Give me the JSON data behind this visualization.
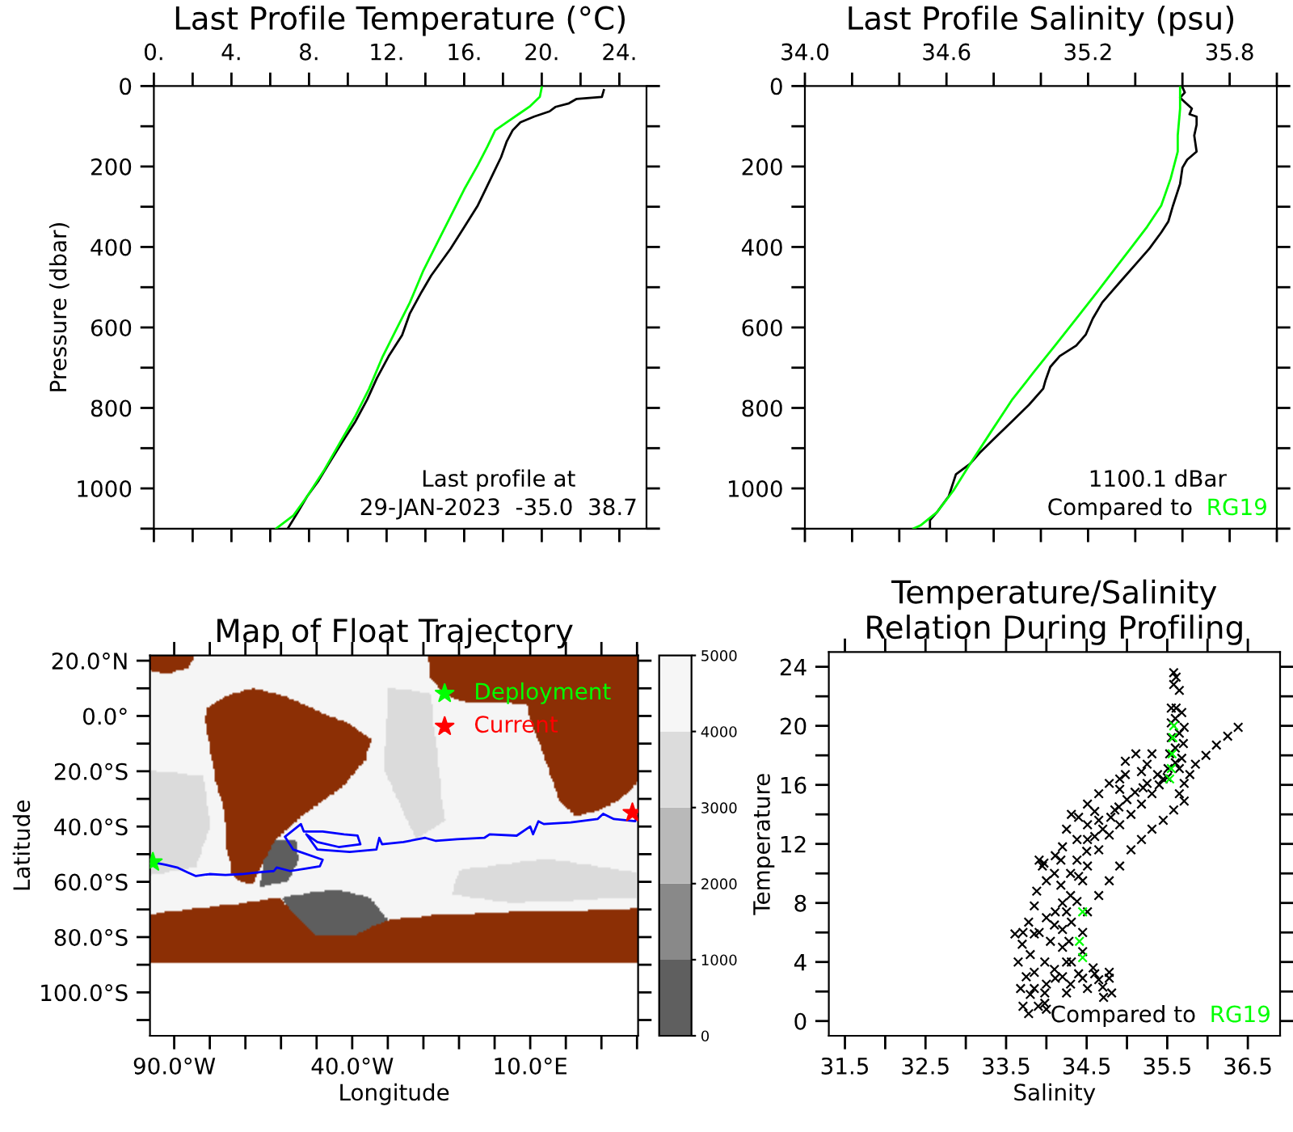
{
  "chart_data": [
    {
      "type": "line",
      "title": "Last Profile Temperature (°C)",
      "ylabel": "Pressure (dbar)",
      "xlim": [
        0,
        25.4
      ],
      "xticks": [
        {
          "value": 0,
          "label": "0."
        },
        {
          "value": 2,
          "label": null
        },
        {
          "value": 4,
          "label": "4."
        },
        {
          "value": 6,
          "label": null
        },
        {
          "value": 8,
          "label": "8."
        },
        {
          "value": 10,
          "label": null
        },
        {
          "value": 12,
          "label": "12."
        },
        {
          "value": 14,
          "label": null
        },
        {
          "value": 16,
          "label": "16."
        },
        {
          "value": 18,
          "label": null
        },
        {
          "value": 20,
          "label": "20."
        },
        {
          "value": 22,
          "label": null
        },
        {
          "value": 24,
          "label": "24."
        }
      ],
      "ylim": [
        1100,
        0
      ],
      "yticks": [
        0,
        {
          "value": 100,
          "label": null
        },
        200,
        {
          "value": 300,
          "label": null
        },
        400,
        {
          "value": 500,
          "label": null
        },
        600,
        {
          "value": 700,
          "label": null
        },
        800,
        {
          "value": 900,
          "label": null
        },
        1000,
        {
          "value": 1100,
          "label": null
        }
      ],
      "series": [
        {
          "color": "#000000",
          "x": [
            23.2,
            23.1,
            21.8,
            21.4,
            20.7,
            20.4,
            19.6,
            18.9,
            18.5,
            18.2,
            17.9,
            17.5,
            17.1,
            16.7,
            16.0,
            15.3,
            14.3,
            13.8,
            13.2,
            12.8,
            12.1,
            11.5,
            11.0,
            10.4,
            9.7,
            9.0,
            8.5,
            7.9,
            7.4,
            6.9
          ],
          "values": [
            10,
            27,
            32,
            43,
            52,
            63,
            76,
            90,
            110,
            137,
            177,
            217,
            257,
            297,
            351,
            404,
            471,
            512,
            565,
            619,
            672,
            726,
            779,
            833,
            886,
            940,
            980,
            1020,
            1061,
            1100
          ]
        },
        {
          "color": "#00ff00",
          "x": [
            20.0,
            19.9,
            19.4,
            18.8,
            18.2,
            17.6,
            17.2,
            16.7,
            16.0,
            15.3,
            14.6,
            13.9,
            13.2,
            12.5,
            11.8,
            11.1,
            10.4,
            9.6,
            8.8,
            7.9,
            7.2,
            6.3
          ],
          "values": [
            3,
            27,
            50,
            70,
            90,
            110,
            150,
            197,
            257,
            324,
            391,
            458,
            538,
            605,
            672,
            752,
            819,
            886,
            953,
            1020,
            1067,
            1100
          ]
        }
      ],
      "annotations": [
        "Last profile at",
        "29-JAN-2023  -35.0  38.7"
      ]
    },
    {
      "type": "line",
      "title": "Last Profile Salinity (psu)",
      "xlim": [
        34.0,
        36.0
      ],
      "xticks": [
        {
          "value": 34.0,
          "label": "34.0"
        },
        {
          "value": 34.2,
          "label": null
        },
        {
          "value": 34.4,
          "label": null
        },
        34.6,
        {
          "value": 34.8,
          "label": null
        },
        {
          "value": 35.0,
          "label": null
        },
        35.2,
        {
          "value": 35.4,
          "label": null
        },
        {
          "value": 35.6,
          "label": null
        },
        35.8,
        {
          "value": 36.0,
          "label": null
        }
      ],
      "ylim": [
        1100,
        0
      ],
      "yticks": [
        0,
        {
          "value": 100,
          "label": null
        },
        200,
        {
          "value": 300,
          "label": null
        },
        400,
        {
          "value": 500,
          "label": null
        },
        600,
        {
          "value": 700,
          "label": null
        },
        800,
        {
          "value": 900,
          "label": null
        },
        1000,
        {
          "value": 1100,
          "label": null
        }
      ],
      "series": [
        {
          "color": "#000000",
          "x": [
            35.6,
            35.61,
            35.59,
            35.61,
            35.64,
            35.63,
            35.66,
            35.66,
            35.65,
            35.66,
            35.62,
            35.6,
            35.59,
            35.56,
            35.54,
            35.51,
            35.46,
            35.4,
            35.34,
            35.3,
            35.26,
            35.22,
            35.19,
            35.15,
            35.08,
            35.04,
            35.02,
            35.01,
            34.95,
            34.88,
            34.81,
            34.74,
            34.7,
            34.64,
            34.61,
            34.56,
            34.53,
            34.53
          ],
          "values": [
            3,
            16,
            29,
            40,
            56,
            70,
            76,
            96,
            123,
            163,
            183,
            203,
            243,
            297,
            337,
            364,
            404,
            444,
            484,
            511,
            538,
            578,
            618,
            645,
            671,
            698,
            731,
            752,
            792,
            832,
            872,
            912,
            939,
            965,
            1019,
            1059,
            1079,
            1100
          ]
        },
        {
          "name": "RG19",
          "color": "#00ff00",
          "x": [
            35.59,
            35.59,
            35.58,
            35.58,
            35.55,
            35.51,
            35.45,
            35.38,
            35.31,
            35.24,
            35.15,
            35.06,
            34.97,
            34.88,
            34.79,
            34.7,
            34.63,
            34.56,
            34.49,
            34.46
          ],
          "values": [
            3,
            56,
            123,
            163,
            230,
            297,
            350,
            404,
            457,
            511,
            578,
            645,
            711,
            778,
            858,
            939,
            1005,
            1059,
            1092,
            1100
          ]
        }
      ],
      "annotations": [
        "1100.1 dBar",
        "Compared to"
      ]
    },
    {
      "type": "line",
      "title": "Map of Float Trajectory",
      "xlabel": "Longitude",
      "ylabel": "Latitude",
      "xlim": [
        -96.8,
        40.3
      ],
      "xticks": [
        {
          "value": -90,
          "label": "90.0°W"
        },
        {
          "value": -80,
          "label": null
        },
        {
          "value": -70,
          "label": null
        },
        {
          "value": -60,
          "label": null
        },
        {
          "value": -50,
          "label": null
        },
        {
          "value": -40,
          "label": "40.0°W"
        },
        {
          "value": -30,
          "label": null
        },
        {
          "value": -20,
          "label": null
        },
        {
          "value": -10,
          "label": null
        },
        {
          "value": 0,
          "label": null
        },
        {
          "value": 10,
          "label": "10.0°E"
        },
        {
          "value": 20,
          "label": null
        },
        {
          "value": 30,
          "label": null
        },
        {
          "value": 40,
          "label": null
        }
      ],
      "ylim": [
        -115.7,
        21.9
      ],
      "yticks": [
        {
          "value": 20,
          "label": "20.0°N"
        },
        {
          "value": 10,
          "label": null
        },
        {
          "value": 0,
          "label": "0.0°"
        },
        {
          "value": -10,
          "label": null
        },
        {
          "value": -20,
          "label": "20.0°S"
        },
        {
          "value": -30,
          "label": null
        },
        {
          "value": -40,
          "label": "40.0°S"
        },
        {
          "value": -50,
          "label": null
        },
        {
          "value": -60,
          "label": "60.0°S"
        },
        {
          "value": -70,
          "label": null
        },
        {
          "value": -80,
          "label": "80.0°S"
        },
        {
          "value": -90,
          "label": null
        },
        {
          "value": -100,
          "label": "100.0°S"
        },
        {
          "value": -110,
          "label": null
        }
      ],
      "clim": [
        0,
        5000
      ],
      "cticks": [
        0,
        1000,
        2000,
        3000,
        4000,
        5000
      ],
      "series": [
        {
          "color": "#0000ff",
          "x": [
            -96.0,
            -92.3,
            -89.2,
            -86.2,
            -83.9,
            -80.1,
            -75.6,
            -71.0,
            -66.5,
            -62.0,
            -61.2,
            -57.4,
            -52.9,
            -49.1,
            -48.3,
            -56.6,
            -58.9,
            -54.4,
            -53.6,
            -48.3,
            -42.3,
            -38.5,
            -37.7,
            -43.8,
            -49.8,
            -52.9,
            -49.8,
            -40.7,
            -33.2,
            -32.4,
            -31.6,
            -25.6,
            -19.5,
            -16.5,
            -10.5,
            -2.9,
            -1.4,
            6.2,
            10.0,
            10.8,
            12.3,
            13.8,
            21.4,
            28.9,
            30.5,
            33.5,
            39.5,
            39.9,
            38.7
          ],
          "values": [
            -52.9,
            -53.9,
            -54.8,
            -56.6,
            -57.9,
            -57.2,
            -57.5,
            -57.2,
            -56.6,
            -56.1,
            -54.8,
            -56.1,
            -55.2,
            -54.4,
            -52.0,
            -48.3,
            -43.7,
            -39.1,
            -41.8,
            -41.8,
            -42.8,
            -43.3,
            -46.4,
            -47.4,
            -45.6,
            -42.8,
            -48.3,
            -49.2,
            -48.3,
            -44.1,
            -46.4,
            -45.6,
            -44.1,
            -45.2,
            -44.6,
            -44.1,
            -42.8,
            -43.3,
            -40.0,
            -42.8,
            -38.1,
            -39.1,
            -38.5,
            -37.3,
            -35.4,
            -37.3,
            -38.1,
            -36.3,
            -35.0
          ]
        },
        {
          "name": "Deployment",
          "type": "scatter",
          "marker": "star",
          "color": "#00ff00",
          "x": [
            -96.0
          ],
          "values": [
            -52.9
          ]
        },
        {
          "name": "Current",
          "type": "scatter",
          "marker": "star",
          "color": "#ff0000",
          "x": [
            38.7
          ],
          "values": [
            -35.0
          ]
        }
      ],
      "legend": "top right"
    },
    {
      "type": "scatter",
      "title": "Temperature/Salinity\nRelation During Profiling",
      "xlabel": "Salinity",
      "ylabel": "Temperature",
      "marker": "cross",
      "xlim": [
        31.3,
        36.9
      ],
      "xticks": [
        31.5,
        {
          "value": 32.0,
          "label": null
        },
        32.5,
        {
          "value": 33.0,
          "label": null
        },
        33.5,
        {
          "value": 34.0,
          "label": null
        },
        34.5,
        {
          "value": 35.0,
          "label": null
        },
        35.5,
        {
          "value": 36.0,
          "label": null
        },
        36.5
      ],
      "ylim": [
        -1,
        25
      ],
      "yticks": [
        0,
        {
          "value": 2,
          "label": null
        },
        4,
        {
          "value": 6,
          "label": null
        },
        8,
        {
          "value": 10,
          "label": null
        },
        12,
        {
          "value": 14,
          "label": null
        },
        16,
        {
          "value": 18,
          "label": null
        },
        20,
        {
          "value": 22,
          "label": null
        },
        24
      ],
      "series": [
        {
          "color": "#000000",
          "x": [
            35.58,
            35.61,
            35.58,
            35.65,
            35.55,
            35.61,
            35.68,
            35.71,
            35.7,
            35.68,
            35.65,
            35.55,
            35.55,
            35.53,
            35.51,
            35.45,
            35.31,
            35.18,
            35.05,
            34.91,
            34.78,
            34.65,
            34.51,
            34.45,
            34.38,
            34.31,
            34.28,
            34.31,
            34.45,
            34.65,
            34.78,
            34.81,
            34.71,
            34.51,
            34.25,
            33.98,
            33.78,
            33.71,
            33.68,
            33.65,
            33.61,
            33.71,
            33.78,
            33.85,
            33.88,
            33.95,
            33.97,
            34.11,
            34.25,
            34.31,
            34.51,
            34.65,
            34.78,
            34.98,
            35.11,
            35.31,
            35.25,
            36.38,
            36.25,
            36.11,
            35.98,
            35.85,
            35.78,
            35.71,
            35.65,
            35.71,
            35.58,
            35.45,
            35.31,
            35.18,
            35.05,
            34.91,
            34.78,
            34.65,
            34.51,
            34.45,
            34.45,
            34.58,
            34.78,
            34.51,
            34.38,
            34.18,
            34.11,
            34.05,
            33.98,
            34.11,
            34.25,
            33.91,
            34.18,
            34.38,
            34.65,
            34.85,
            34.51,
            34.25,
            33.85,
            33.98,
            33.85,
            34.91,
            34.98,
            34.91,
            35.18,
            35.25,
            35.38,
            33.85,
            33.91,
            34.0,
            34.1,
            34.2,
            34.3,
            34.4,
            34.6,
            34.7,
            34.2,
            34.2,
            34.1,
            34.0,
            34.3,
            34.2,
            34.4,
            34.3,
            34.5,
            34.6,
            34.7,
            34.8,
            34.9,
            35.0,
            35.1,
            35.2,
            35.4,
            35.5,
            35.6,
            35.6,
            35.65,
            35.6,
            33.8,
            33.9,
            34.0,
            33.75,
            33.8,
            33.7,
            34.0,
            34.1,
            34.2,
            34.4,
            34.6
          ],
          "values": [
            23.6,
            23.3,
            22.8,
            22.4,
            21.2,
            21.2,
            20.9,
            19.9,
            18.8,
            17.8,
            17.1,
            20.2,
            19.2,
            18.1,
            17.1,
            16.4,
            15.4,
            14.7,
            14.0,
            13.3,
            12.6,
            11.6,
            10.5,
            9.5,
            8.1,
            6.7,
            5.4,
            4.0,
            2.9,
            2.8,
            2.9,
            1.9,
            1.6,
            2.2,
            1.9,
            1.2,
            0.5,
            1.0,
            2.2,
            4.0,
            5.9,
            6.0,
            6.7,
            7.8,
            8.8,
            10.5,
            10.7,
            11.2,
            13.0,
            14.0,
            14.7,
            15.4,
            16.1,
            17.6,
            18.1,
            18.1,
            17.4,
            19.9,
            19.3,
            18.7,
            18.0,
            17.4,
            16.7,
            16.1,
            15.4,
            14.9,
            14.3,
            13.6,
            13.0,
            12.3,
            11.6,
            10.5,
            9.5,
            8.5,
            7.4,
            6.0,
            4.7,
            3.6,
            3.3,
            12.3,
            10.9,
            9.2,
            7.4,
            5.4,
            4.0,
            2.9,
            4.0,
            6.0,
            10.9,
            12.3,
            13.6,
            14.3,
            13.3,
            7.4,
            2.2,
            1.9,
            3.3,
            15.7,
            16.7,
            16.4,
            16.9,
            16.1,
            16.7,
            5.9,
            10.9,
            2.5,
            3.5,
            3.0,
            2.5,
            3.2,
            3.2,
            2.3,
            5.0,
            6.2,
            6.5,
            7.0,
            8.5,
            8.0,
            9.8,
            10.0,
            11.5,
            12.5,
            13.0,
            13.8,
            14.5,
            15.0,
            15.5,
            15.8,
            16.0,
            16.5,
            17.5,
            18.5,
            19.5,
            20.5,
            1.8,
            1.0,
            0.8,
            3.0,
            4.5,
            5.2,
            9.5,
            10.0,
            11.8,
            13.8,
            14.2
          ]
        },
        {
          "name": "RG19",
          "color": "#00ff00",
          "x": [
            35.58,
            35.57,
            35.56,
            35.55,
            35.53,
            34.45,
            34.41,
            34.45
          ],
          "values": [
            20.0,
            19.2,
            18.1,
            17.1,
            16.4,
            7.4,
            5.4,
            4.3
          ]
        }
      ],
      "annotations": [
        "Compared to"
      ]
    }
  ]
}
